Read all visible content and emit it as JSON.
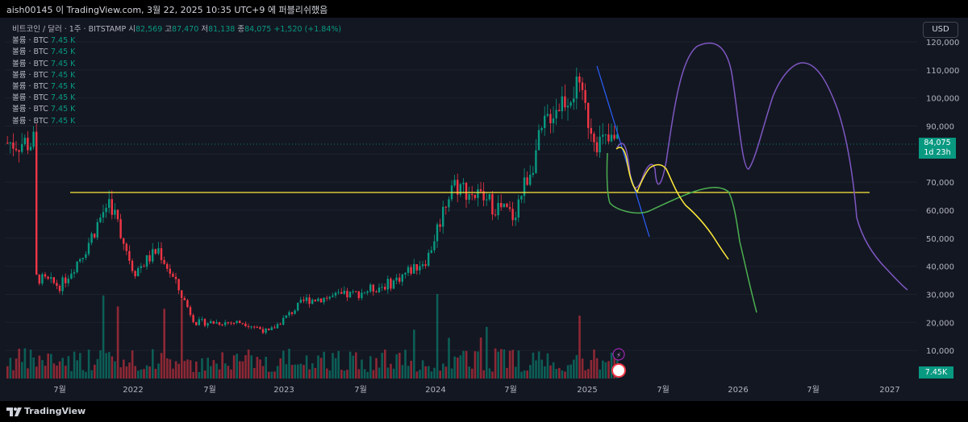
{
  "header": {
    "caption": "aish00145 이 TradingView.com, 3월 22, 2025 10:35 UTC+9 에 퍼블리쉬했음"
  },
  "symbol": {
    "name": "비트코인 / 달러 · 1주 · BITSTAMP",
    "open_label": "시",
    "open": "82,569",
    "high_label": "고",
    "high": "87,470",
    "low_label": "저",
    "low": "81,138",
    "close_label": "종",
    "close": "84,075",
    "change": "+1,520 (+1.84%)"
  },
  "volume_rows": [
    {
      "label": "볼륨 · BTC",
      "value": "7.45 K"
    },
    {
      "label": "볼륨 · BTC",
      "value": "7.45 K"
    },
    {
      "label": "볼륨 · BTC",
      "value": "7.45 K"
    },
    {
      "label": "볼륨 · BTC",
      "value": "7.45 K"
    },
    {
      "label": "볼륨 · BTC",
      "value": "7.45 K"
    },
    {
      "label": "볼륨 · BTC",
      "value": "7.45 K"
    },
    {
      "label": "볼륨 · BTC",
      "value": "7.45 K"
    },
    {
      "label": "볼륨 · BTC",
      "value": "7.45 K"
    }
  ],
  "currency_button": "USD",
  "price_badge": {
    "price": "84,075",
    "countdown": "1d 23h"
  },
  "volume_badge": "7.45K",
  "y_axis_labels": [
    "120,000",
    "110,000",
    "100,000",
    "90,000",
    "80,000",
    "70,000",
    "60,000",
    "50,000",
    "40,000",
    "30,000",
    "20,000",
    "10,000"
  ],
  "x_axis_labels": [
    "7월",
    "2022",
    "7월",
    "2023",
    "7월",
    "2024",
    "7월",
    "2025",
    "7월",
    "2026",
    "7월",
    "2027"
  ],
  "footer_brand": "TradingView",
  "colors": {
    "up": "#089981",
    "down": "#f23645",
    "horizontal_line": "#ffeb3b",
    "trend_line": "#2962ff",
    "purple_path": "#7e57c2",
    "green_path": "#4caf50",
    "yellow_path": "#ffeb3b",
    "background": "#131722"
  },
  "chart_data": {
    "type": "candlestick",
    "symbol": "BTCUSD",
    "interval": "1W",
    "x_range": [
      "2021-05",
      "2027-03"
    ],
    "y_range": [
      5000,
      125000
    ],
    "price_anchors": [
      {
        "date": "2021-05",
        "price": 36000
      },
      {
        "date": "2021-07",
        "price": 33000
      },
      {
        "date": "2021-09",
        "price": 46000
      },
      {
        "date": "2021-11",
        "price": 64000
      },
      {
        "date": "2022-01",
        "price": 38000
      },
      {
        "date": "2022-03",
        "price": 46000
      },
      {
        "date": "2022-06",
        "price": 20000
      },
      {
        "date": "2022-10",
        "price": 20000
      },
      {
        "date": "2022-12",
        "price": 16500
      },
      {
        "date": "2023-03",
        "price": 28000
      },
      {
        "date": "2023-07",
        "price": 30000
      },
      {
        "date": "2023-10",
        "price": 34000
      },
      {
        "date": "2024-01",
        "price": 43000
      },
      {
        "date": "2024-03",
        "price": 70000
      },
      {
        "date": "2024-08",
        "price": 58000
      },
      {
        "date": "2024-11",
        "price": 95000
      },
      {
        "date": "2025-01",
        "price": 104000
      },
      {
        "date": "2025-03",
        "price": 84075
      }
    ],
    "horizontal_level": 66000,
    "projections": [
      {
        "name": "purple",
        "points": [
          [
            2025.2,
            80000
          ],
          [
            2025.5,
            70000
          ],
          [
            2025.9,
            118000
          ],
          [
            2026.1,
            75000
          ],
          [
            2026.5,
            112000
          ],
          [
            2026.8,
            55000
          ],
          [
            2027.1,
            32000
          ]
        ]
      },
      {
        "name": "green",
        "points": [
          [
            2025.1,
            78000
          ],
          [
            2025.4,
            60000
          ],
          [
            2025.9,
            68000
          ],
          [
            2026.2,
            24000
          ]
        ]
      },
      {
        "name": "yellow",
        "points": [
          [
            2025.2,
            82000
          ],
          [
            2025.45,
            68000
          ],
          [
            2025.6,
            75000
          ],
          [
            2025.9,
            58000
          ],
          [
            2026.0,
            42000
          ]
        ]
      }
    ]
  }
}
